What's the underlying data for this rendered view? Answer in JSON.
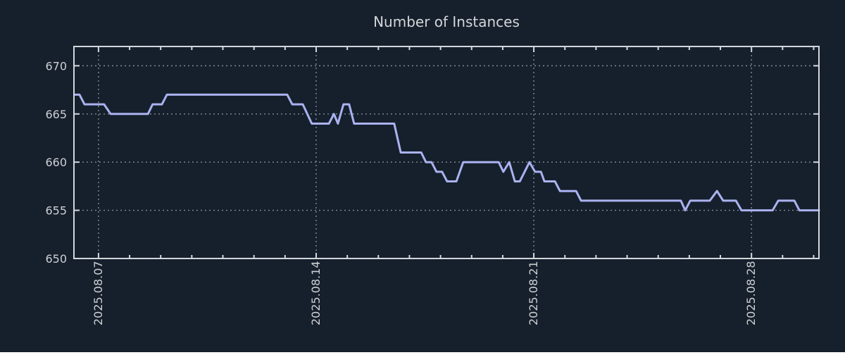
{
  "page": {
    "background": "#16202c",
    "text_color": "#d3d5d8",
    "tick_label_color": "#cdd0d4",
    "spine_color": "#d2d7dc",
    "grid_color": "#828a94"
  },
  "chart_data": {
    "type": "line",
    "title": "Number of Instances",
    "legend": "none",
    "grid": "dotted, on major ticks",
    "x_axis": {
      "unit": "date",
      "tick_labels": [
        "2025.08.07",
        "2025.08.14",
        "2025.08.21",
        "2025.08.28"
      ],
      "tick_day_offsets": [
        0,
        7,
        14,
        21
      ],
      "range_days": [
        -0.79,
        23.17
      ],
      "minor_tick_every_days": 1,
      "label_rotation_deg": -90
    },
    "y_axis": {
      "range": [
        650,
        672
      ],
      "tick_values": [
        650,
        655,
        660,
        665,
        670
      ],
      "grid_tick_values": [
        655,
        660,
        665,
        670
      ]
    },
    "series": [
      {
        "name": "instances",
        "color": "#aab2f0",
        "points_day_value": [
          [
            -0.77,
            667
          ],
          [
            -0.61,
            667
          ],
          [
            -0.45,
            666
          ],
          [
            0.18,
            666
          ],
          [
            0.39,
            665
          ],
          [
            1.59,
            665
          ],
          [
            1.74,
            666
          ],
          [
            2.04,
            666
          ],
          [
            2.2,
            667
          ],
          [
            6.07,
            667
          ],
          [
            6.23,
            666
          ],
          [
            6.57,
            666
          ],
          [
            6.86,
            664
          ],
          [
            7.41,
            664
          ],
          [
            7.57,
            665
          ],
          [
            7.7,
            664
          ],
          [
            7.88,
            666
          ],
          [
            8.06,
            666
          ],
          [
            8.22,
            664
          ],
          [
            9.51,
            664
          ],
          [
            9.72,
            661
          ],
          [
            10.38,
            661
          ],
          [
            10.53,
            660
          ],
          [
            10.71,
            660
          ],
          [
            10.87,
            659
          ],
          [
            11.05,
            659
          ],
          [
            11.21,
            658
          ],
          [
            11.51,
            658
          ],
          [
            11.73,
            660
          ],
          [
            12.87,
            660
          ],
          [
            13.02,
            659
          ],
          [
            13.21,
            660
          ],
          [
            13.39,
            658
          ],
          [
            13.55,
            658
          ],
          [
            13.86,
            660
          ],
          [
            14.04,
            659
          ],
          [
            14.23,
            659
          ],
          [
            14.34,
            658
          ],
          [
            14.68,
            658
          ],
          [
            14.84,
            657
          ],
          [
            15.36,
            657
          ],
          [
            15.52,
            656
          ],
          [
            18.73,
            656
          ],
          [
            18.87,
            655
          ],
          [
            19.03,
            656
          ],
          [
            19.66,
            656
          ],
          [
            19.89,
            657
          ],
          [
            20.09,
            656
          ],
          [
            20.5,
            656
          ],
          [
            20.68,
            655
          ],
          [
            21.68,
            655
          ],
          [
            21.86,
            656
          ],
          [
            22.38,
            656
          ],
          [
            22.54,
            655
          ],
          [
            23.17,
            655
          ]
        ]
      }
    ]
  }
}
